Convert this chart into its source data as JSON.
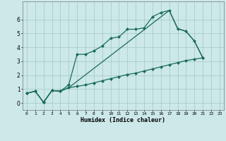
{
  "xlabel": "Humidex (Indice chaleur)",
  "background_color": "#cce8e8",
  "grid_color": "#aacccc",
  "line_color": "#1a6b5a",
  "xlim": [
    -0.5,
    23.5
  ],
  "ylim": [
    -0.5,
    7.3
  ],
  "yticks": [
    0,
    1,
    2,
    3,
    4,
    5,
    6
  ],
  "xticks": [
    0,
    1,
    2,
    3,
    4,
    5,
    6,
    7,
    8,
    9,
    10,
    11,
    12,
    13,
    14,
    15,
    16,
    17,
    18,
    19,
    20,
    21,
    22,
    23
  ],
  "curve1_x": [
    0,
    1,
    2,
    3,
    4,
    5,
    6,
    7,
    8,
    9,
    10,
    11,
    12,
    13,
    14,
    15,
    16,
    17,
    18,
    19,
    20,
    21
  ],
  "curve1_y": [
    0.7,
    0.85,
    0.05,
    0.9,
    0.85,
    1.3,
    3.5,
    3.5,
    3.75,
    4.1,
    4.65,
    4.75,
    5.3,
    5.3,
    5.4,
    6.2,
    6.5,
    6.65,
    5.35,
    5.15,
    4.45,
    3.25
  ],
  "curve2_x": [
    0,
    1,
    2,
    3,
    4,
    5,
    6,
    7,
    8,
    9,
    10,
    11,
    12,
    13,
    14,
    15,
    16,
    17,
    18,
    19,
    20,
    21
  ],
  "curve2_y": [
    0.7,
    0.85,
    0.05,
    0.9,
    0.85,
    1.1,
    1.2,
    1.3,
    1.45,
    1.6,
    1.75,
    1.9,
    2.05,
    2.15,
    2.3,
    2.45,
    2.6,
    2.75,
    2.9,
    3.05,
    3.15,
    3.25
  ],
  "curve3_x": [
    0,
    1,
    2,
    3,
    4,
    5,
    17,
    18,
    19,
    20,
    21
  ],
  "curve3_y": [
    0.7,
    0.85,
    0.05,
    0.9,
    0.85,
    1.1,
    6.65,
    5.35,
    5.15,
    4.45,
    3.25
  ]
}
